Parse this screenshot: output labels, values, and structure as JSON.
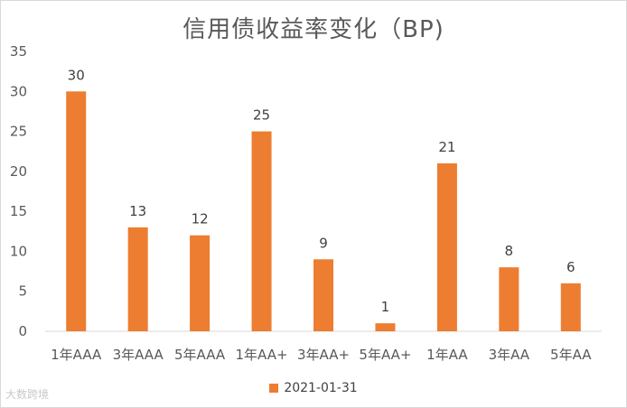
{
  "chart_data": {
    "type": "bar",
    "title": "信用债收益率变化（BP)",
    "categories": [
      "1年AAA",
      "3年AAA",
      "5年AAA",
      "1年AA+",
      "3年AA+",
      "5年AA+",
      "1年AA",
      "3年AA",
      "5年AA"
    ],
    "series": [
      {
        "name": "2021-01-31",
        "values": [
          30,
          13,
          12,
          25,
          9,
          1,
          21,
          8,
          6
        ],
        "color": "#ed7d31"
      }
    ],
    "ylim": [
      0,
      35
    ],
    "yticks": [
      0,
      5,
      10,
      15,
      20,
      25,
      30,
      35
    ],
    "grid": false,
    "legend_position": "bottom"
  },
  "watermark": "大数跨境"
}
